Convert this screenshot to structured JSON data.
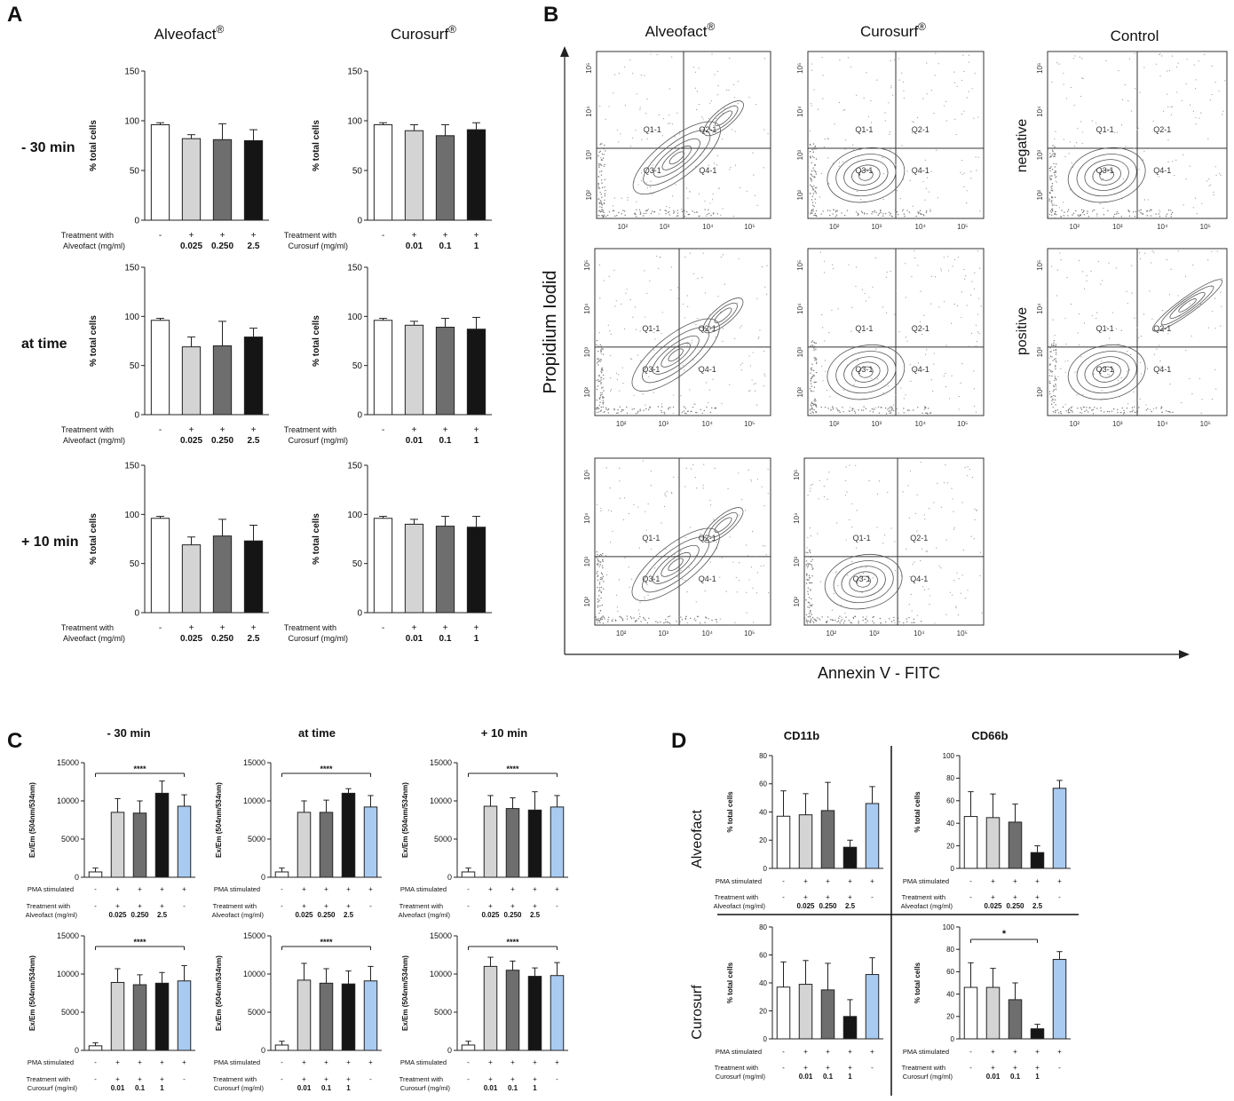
{
  "figure": {
    "panel_letters": {
      "A": "A",
      "B": "B",
      "C": "C",
      "D": "D"
    },
    "colors": {
      "white": "#ffffff",
      "light": "#d4d4d4",
      "mid": "#6e6e6e",
      "dark": "#151515",
      "blue": "#a9cbf2",
      "axis": "#222222"
    },
    "panel_a": {
      "col_titles": [
        "Alveofact",
        "Curosurf"
      ],
      "reg_mark": "®",
      "row_labels": [
        "- 30 min",
        "at time",
        "+ 10 min"
      ],
      "y_label": "% total cells",
      "treatment_label": {
        "alveofact": [
          "Treatment with",
          "Alveofact (mg/ml)"
        ],
        "curosurf": [
          "Treatment with",
          "Curosurf (mg/ml)"
        ]
      },
      "signs": [
        "-",
        "+",
        "+",
        "+"
      ],
      "doses": {
        "alveofact": [
          "",
          "0.025",
          "0.250",
          "2.5"
        ],
        "curosurf": [
          "",
          "0.01",
          "0.1",
          "1"
        ]
      },
      "colors": [
        "white",
        "light",
        "mid",
        "dark"
      ]
    },
    "panel_b": {
      "col_titles": [
        "Alveofact",
        "Curosurf",
        "Control"
      ],
      "reg_mark": "®",
      "y_axis_label": "Propidium Iodid",
      "x_axis_label": "Annexin V - FITC",
      "control_labels": [
        "negative",
        "positive"
      ],
      "quadrants": [
        "Q1-1",
        "Q2-1",
        "Q3-1",
        "Q4-1"
      ],
      "x_ticks": [
        "10²",
        "10³",
        "10⁴",
        "10⁵"
      ],
      "y_ticks": [
        "10²",
        "10³",
        "10⁴",
        "10⁵"
      ]
    },
    "panel_c": {
      "col_titles": [
        "- 30 min",
        "at time",
        "+ 10 min"
      ],
      "y_label": "Ex/Em (504nm/534nm)",
      "pma_label": "PMA stimulated",
      "pma_signs": [
        "-",
        "+",
        "+",
        "+",
        "+"
      ],
      "treat_signs": [
        "-",
        "+",
        "+",
        "+",
        "-"
      ],
      "treatment_label": {
        "alveofact": [
          "Treatment with",
          "Alveofact (mg/ml)"
        ],
        "curosurf": [
          "Treatment with",
          "Curosurf (mg/ml)"
        ]
      },
      "doses": {
        "alveofact": [
          "",
          "0.025",
          "0.250",
          "2.5",
          ""
        ],
        "curosurf": [
          "",
          "0.01",
          "0.1",
          "1",
          ""
        ]
      },
      "sig": "****",
      "colors": [
        "white",
        "light",
        "mid",
        "dark",
        "blue"
      ]
    },
    "panel_d": {
      "col_titles": [
        "CD11b",
        "CD66b"
      ],
      "row_labels": [
        "Alveofact",
        "Curosurf"
      ],
      "y_label": "% total cells",
      "pma_label": "PMA stimulated",
      "pma_signs": [
        "-",
        "+",
        "+",
        "+",
        "+"
      ],
      "treat_signs": [
        "-",
        "+",
        "+",
        "+",
        "-"
      ],
      "treatment_label": {
        "alveofact": [
          "Treatment with",
          "Alveofact (mg/ml)"
        ],
        "curosurf": [
          "Treatment with",
          "Curosurf (mg/ml)"
        ]
      },
      "doses": {
        "alveofact": [
          "",
          "0.025",
          "0.250",
          "2.5",
          ""
        ],
        "curosurf": [
          "",
          "0.01",
          "0.1",
          "1",
          ""
        ]
      },
      "sig": "*",
      "colors": [
        "white",
        "light",
        "mid",
        "dark",
        "blue"
      ]
    }
  },
  "chart_data": [
    {
      "id": "A-alv-m30",
      "type": "bar",
      "panel": "A",
      "title": "Alveofact - 30 min",
      "ylabel": "% total cells",
      "ylim": [
        0,
        150
      ],
      "yticks": [
        0,
        50,
        100,
        150
      ],
      "values": [
        96,
        82,
        81,
        80
      ],
      "errors": [
        2,
        4,
        16,
        11
      ]
    },
    {
      "id": "A-cur-m30",
      "type": "bar",
      "panel": "A",
      "title": "Curosurf - 30 min",
      "ylabel": "% total cells",
      "ylim": [
        0,
        150
      ],
      "yticks": [
        0,
        50,
        100,
        150
      ],
      "values": [
        96,
        90,
        85,
        91
      ],
      "errors": [
        2,
        6,
        11,
        7
      ]
    },
    {
      "id": "A-alv-0",
      "type": "bar",
      "panel": "A",
      "title": "Alveofact at time",
      "ylabel": "% total cells",
      "ylim": [
        0,
        150
      ],
      "yticks": [
        0,
        50,
        100,
        150
      ],
      "values": [
        96,
        69,
        70,
        79
      ],
      "errors": [
        2,
        10,
        25,
        9
      ]
    },
    {
      "id": "A-cur-0",
      "type": "bar",
      "panel": "A",
      "title": "Curosurf at time",
      "ylabel": "% total cells",
      "ylim": [
        0,
        150
      ],
      "yticks": [
        0,
        50,
        100,
        150
      ],
      "values": [
        96,
        91,
        89,
        87
      ],
      "errors": [
        2,
        4,
        9,
        12
      ]
    },
    {
      "id": "A-alv-p10",
      "type": "bar",
      "panel": "A",
      "title": "Alveofact + 10 min",
      "ylabel": "% total cells",
      "ylim": [
        0,
        150
      ],
      "yticks": [
        0,
        50,
        100,
        150
      ],
      "values": [
        96,
        69,
        78,
        73
      ],
      "errors": [
        2,
        8,
        17,
        16
      ]
    },
    {
      "id": "A-cur-p10",
      "type": "bar",
      "panel": "A",
      "title": "Curosurf + 10 min",
      "ylabel": "% total cells",
      "ylim": [
        0,
        150
      ],
      "yticks": [
        0,
        50,
        100,
        150
      ],
      "values": [
        96,
        90,
        88,
        87
      ],
      "errors": [
        2,
        5,
        10,
        11
      ]
    },
    {
      "id": "C-alv-m30",
      "type": "bar",
      "panel": "C",
      "title": "- 30 min Alveofact",
      "ylabel": "Ex/Em (504nm/534nm)",
      "ylim": [
        0,
        15000
      ],
      "yticks": [
        0,
        5000,
        10000,
        15000
      ],
      "values": [
        700,
        8500,
        8400,
        11000,
        9300
      ],
      "errors": [
        500,
        1800,
        1600,
        1600,
        1500
      ]
    },
    {
      "id": "C-alv-0",
      "type": "bar",
      "panel": "C",
      "title": "at time Alveofact",
      "ylabel": "Ex/Em (504nm/534nm)",
      "ylim": [
        0,
        15000
      ],
      "yticks": [
        0,
        5000,
        10000,
        15000
      ],
      "values": [
        700,
        8500,
        8500,
        11000,
        9200
      ],
      "errors": [
        500,
        1500,
        1600,
        600,
        1500
      ]
    },
    {
      "id": "C-alv-p10",
      "type": "bar",
      "panel": "C",
      "title": "+ 10 min Alveofact",
      "ylabel": "Ex/Em (504nm/534nm)",
      "ylim": [
        0,
        15000
      ],
      "yticks": [
        0,
        5000,
        10000,
        15000
      ],
      "values": [
        700,
        9300,
        9000,
        8800,
        9200
      ],
      "errors": [
        500,
        1400,
        1400,
        2400,
        1500
      ]
    },
    {
      "id": "C-cur-m30",
      "type": "bar",
      "panel": "C",
      "title": "- 30 min Curosurf",
      "ylabel": "Ex/Em (504nm/534nm)",
      "ylim": [
        0,
        15000
      ],
      "yticks": [
        0,
        5000,
        10000,
        15000
      ],
      "values": [
        600,
        8900,
        8600,
        8800,
        9100
      ],
      "errors": [
        400,
        1800,
        1300,
        1400,
        2000
      ]
    },
    {
      "id": "C-cur-0",
      "type": "bar",
      "panel": "C",
      "title": "at time Curosurf",
      "ylabel": "Ex/Em (504nm/534nm)",
      "ylim": [
        0,
        15000
      ],
      "yticks": [
        0,
        5000,
        10000,
        15000
      ],
      "values": [
        700,
        9200,
        8800,
        8700,
        9100
      ],
      "errors": [
        500,
        2200,
        1900,
        1700,
        1900
      ]
    },
    {
      "id": "C-cur-p10",
      "type": "bar",
      "panel": "C",
      "title": "+ 10 min Curosurf",
      "ylabel": "Ex/Em (504nm/534nm)",
      "ylim": [
        0,
        15000
      ],
      "yticks": [
        0,
        5000,
        10000,
        15000
      ],
      "values": [
        700,
        11000,
        10500,
        9700,
        9800
      ],
      "errors": [
        500,
        1200,
        1200,
        1100,
        1700
      ]
    },
    {
      "id": "D-alv-cd11b",
      "type": "bar",
      "panel": "D",
      "title": "CD11b Alveofact",
      "ylabel": "% total cells",
      "ylim": [
        0,
        80
      ],
      "yticks": [
        0,
        20,
        40,
        60,
        80
      ],
      "values": [
        37,
        38,
        41,
        15,
        46
      ],
      "errors": [
        18,
        15,
        20,
        5,
        12
      ]
    },
    {
      "id": "D-alv-cd66b",
      "type": "bar",
      "panel": "D",
      "title": "CD66b Alveofact",
      "ylabel": "% total cells",
      "ylim": [
        0,
        100
      ],
      "yticks": [
        0,
        20,
        40,
        60,
        80,
        100
      ],
      "values": [
        46,
        45,
        41,
        14,
        71
      ],
      "errors": [
        22,
        21,
        16,
        6,
        7
      ]
    },
    {
      "id": "D-cur-cd11b",
      "type": "bar",
      "panel": "D",
      "title": "CD11b Curosurf",
      "ylabel": "% total cells",
      "ylim": [
        0,
        80
      ],
      "yticks": [
        0,
        20,
        40,
        60,
        80
      ],
      "values": [
        37,
        39,
        35,
        16,
        46
      ],
      "errors": [
        18,
        17,
        19,
        12,
        12
      ]
    },
    {
      "id": "D-cur-cd66b",
      "type": "bar",
      "panel": "D",
      "title": "CD66b Curosurf",
      "ylabel": "% total cells",
      "ylim": [
        0,
        100
      ],
      "yticks": [
        0,
        20,
        40,
        60,
        80,
        100
      ],
      "values": [
        46,
        46,
        35,
        9,
        71
      ],
      "errors": [
        22,
        17,
        15,
        4,
        7
      ]
    }
  ]
}
